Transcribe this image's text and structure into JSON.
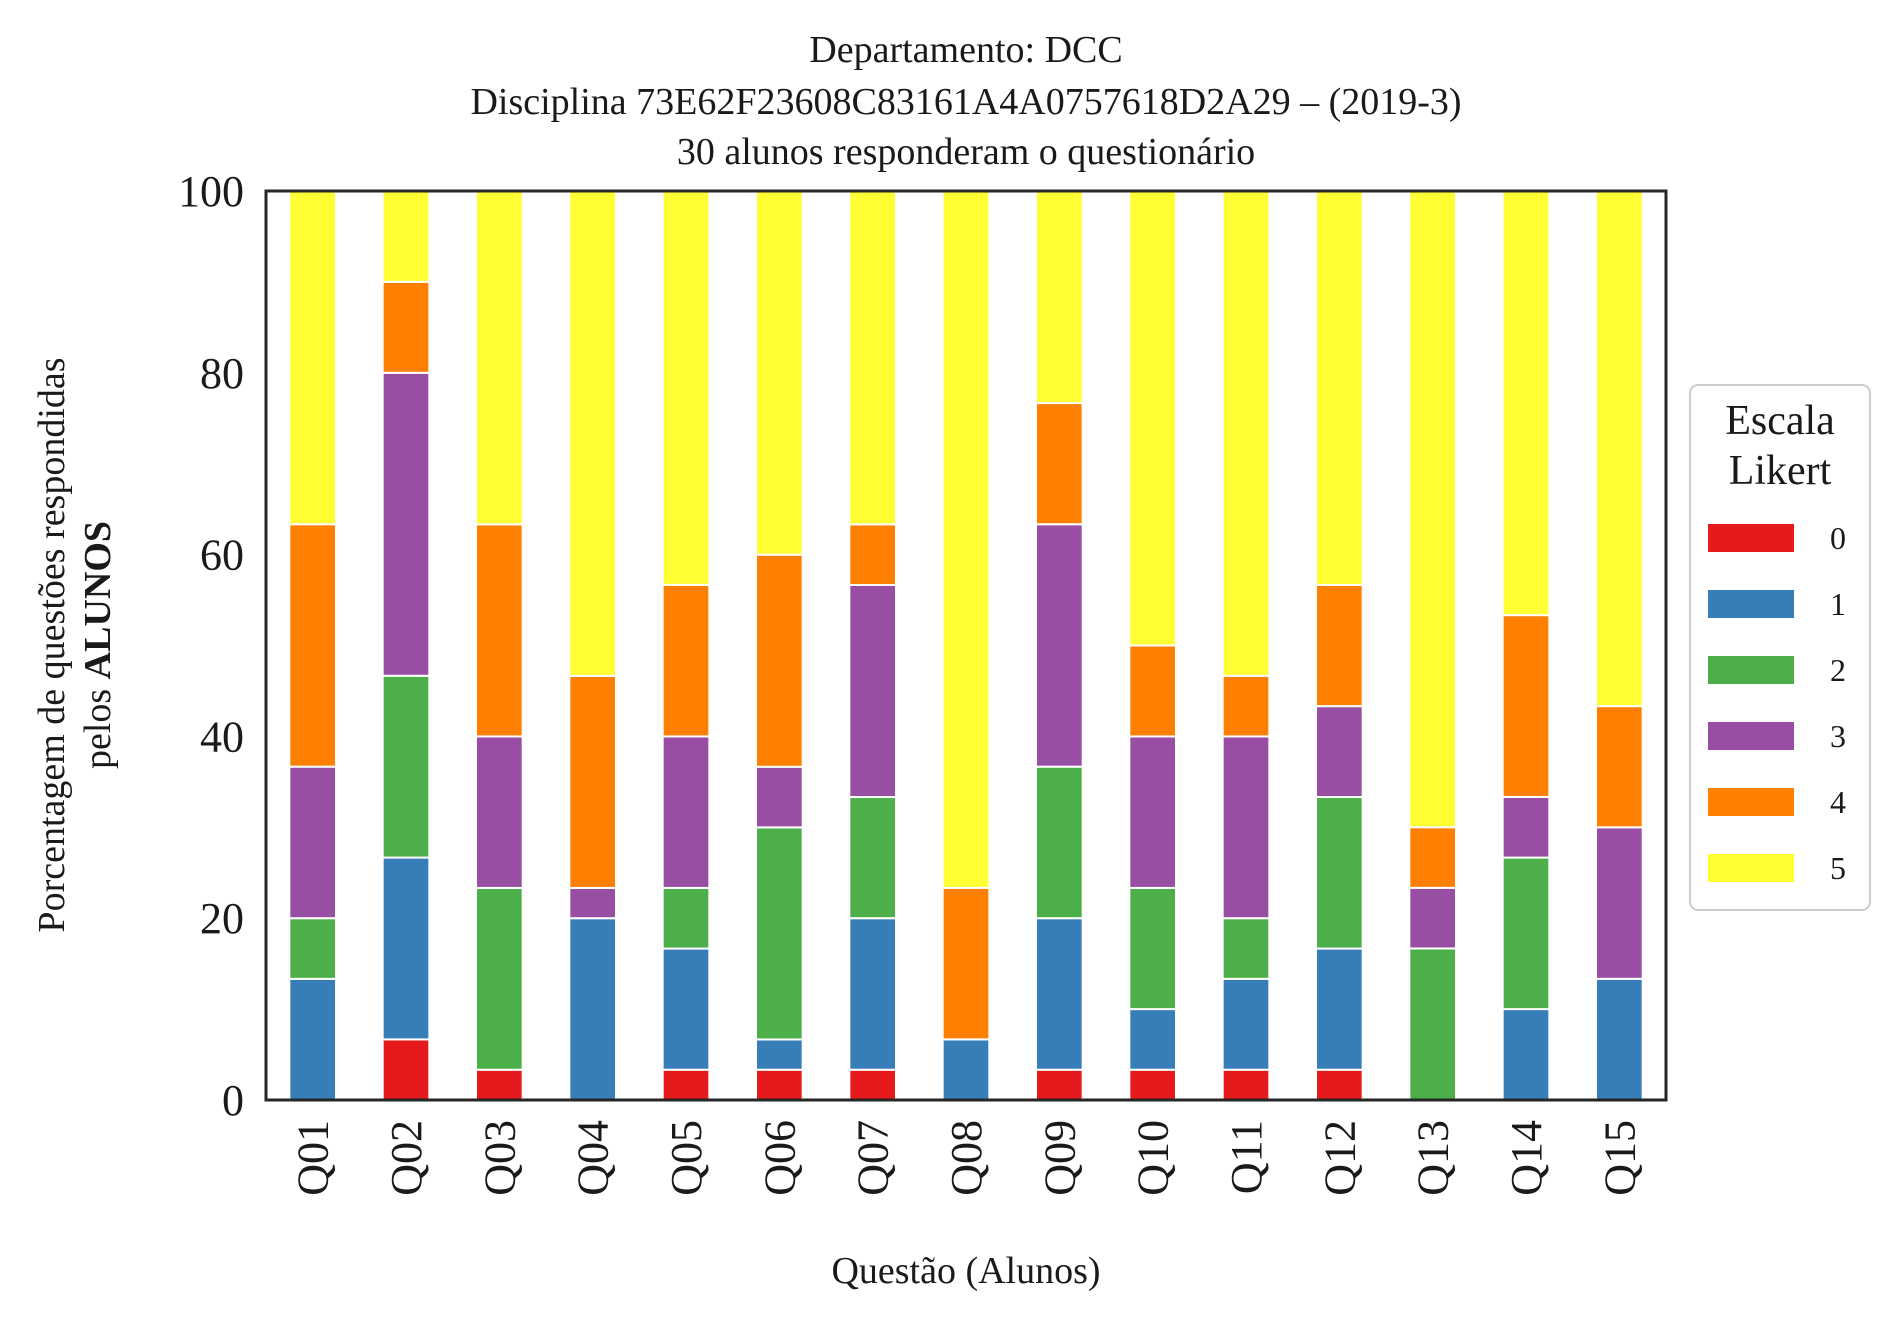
{
  "chart_data": {
    "type": "bar",
    "stacked": true,
    "title_lines": [
      "Departamento: DCC",
      "Disciplina 73E62F23608C83161A4A0757618D2A29 – (2019-3)",
      "30 alunos responderam o questionário"
    ],
    "xlabel": "Questão (Alunos)",
    "ylabel_line1": "Porcentagem de questões respondidas",
    "ylabel_line2_prefix": "pelos ",
    "ylabel_line2_bold": "ALUNOS",
    "ylim": [
      0,
      100
    ],
    "yticks": [
      "0",
      "20",
      "40",
      "60",
      "80",
      "100"
    ],
    "categories": [
      "Q01",
      "Q02",
      "Q03",
      "Q04",
      "Q05",
      "Q06",
      "Q07",
      "Q08",
      "Q09",
      "Q10",
      "Q11",
      "Q12",
      "Q13",
      "Q14",
      "Q15"
    ],
    "legend_title_lines": [
      "Escala",
      "Likert"
    ],
    "legend_placement": "right",
    "grid": false,
    "series": [
      {
        "name": "0",
        "color": "#e41a1c",
        "values": [
          0,
          6.67,
          3.33,
          0,
          3.33,
          3.33,
          3.33,
          0,
          3.33,
          3.33,
          3.33,
          3.33,
          0,
          0,
          0
        ]
      },
      {
        "name": "1",
        "color": "#377eb8",
        "values": [
          13.33,
          20,
          0,
          20,
          13.33,
          3.33,
          16.67,
          6.67,
          16.67,
          6.67,
          10,
          13.33,
          0,
          10,
          13.33
        ]
      },
      {
        "name": "2",
        "color": "#4daf4a",
        "values": [
          6.67,
          20,
          20,
          0,
          6.67,
          23.33,
          13.33,
          0,
          16.67,
          13.33,
          6.67,
          16.67,
          16.67,
          16.67,
          0
        ]
      },
      {
        "name": "3",
        "color": "#984ea3",
        "values": [
          16.67,
          33.33,
          16.67,
          3.33,
          16.67,
          6.67,
          23.33,
          0,
          26.67,
          16.67,
          20,
          10,
          6.67,
          6.67,
          16.67
        ]
      },
      {
        "name": "4",
        "color": "#ff7f00",
        "values": [
          26.67,
          10,
          23.33,
          23.33,
          16.67,
          23.33,
          6.67,
          16.67,
          13.33,
          10,
          6.67,
          13.33,
          6.67,
          20,
          13.33
        ]
      },
      {
        "name": "5",
        "color": "#ffff33",
        "values": [
          36.67,
          10,
          36.67,
          53.33,
          43.33,
          40,
          36.67,
          76.67,
          23.33,
          50,
          53.33,
          43.33,
          70,
          46.67,
          56.67
        ]
      }
    ]
  }
}
